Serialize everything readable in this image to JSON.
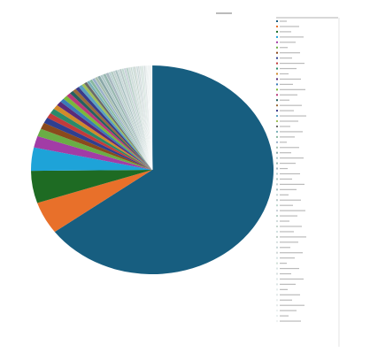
{
  "chart_data": {
    "type": "pie",
    "categories": [
      null,
      null,
      null,
      null,
      null,
      null,
      null,
      null,
      null,
      null,
      null,
      null,
      null,
      null,
      null,
      null,
      null,
      null,
      null,
      null,
      null,
      null,
      null,
      null,
      null,
      null,
      null,
      null,
      null,
      null,
      null,
      null,
      null,
      null,
      null,
      null,
      null,
      null,
      null,
      null,
      null,
      null,
      null,
      null,
      null,
      null,
      null,
      null,
      null,
      null,
      null,
      null,
      null,
      null,
      null,
      null,
      null,
      null
    ],
    "values": [
      65,
      5,
      5,
      3.6,
      1.8,
      1.2,
      1,
      0.9,
      0.8,
      0.8,
      0.7,
      0.7,
      0.6,
      0.6,
      0.6,
      0.5,
      0.5,
      0.5,
      0.5,
      0.4,
      0.4,
      0.4,
      0.4,
      0.4,
      0.4,
      0.4,
      0.4,
      0.4,
      0.4,
      0.3,
      0.3,
      0.3,
      0.3,
      0.3,
      0.3,
      0.3,
      0.3,
      0.3,
      0.3,
      0.2,
      0.2,
      0.2,
      0.2,
      0.2,
      0.2,
      0.2,
      0.2,
      0.2,
      0.2,
      0.1,
      0.1,
      0.1,
      0.1,
      0.1,
      0.1,
      0.1,
      0.1,
      0.1
    ],
    "colors": [
      "#175e80",
      "#e8702a",
      "#1e6b23",
      "#1ea3d8",
      "#a23ca6",
      "#6aad45",
      "#8a4a1c",
      "#2f3f8f",
      "#c23b3b",
      "#2a8a6a",
      "#d18a2a",
      "#5a2a7a",
      "#3a7ab8",
      "#7ab83a",
      "#b83a7a",
      "#246060",
      "#986b3a",
      "#3a3a8a",
      "#5aa0c0",
      "#a0c05a",
      "#6a6a6a",
      "#7ab0b8",
      "#88b8a0",
      "#9ab0c8",
      "#a8c0b0",
      "#8aa8a8",
      "#b0c8c8",
      "#98b8b0",
      "#a8b8c0",
      "#b8d0d0",
      "#b0c8c0",
      "#c0d0d0",
      "#a8c0c0",
      "#c8d8d8",
      "#b8c8c8",
      "#c0d8d0",
      "#c8d0d8",
      "#b8d0c8",
      "#d0dcdc",
      "#c8d8d0",
      "#d0e0e0",
      "#c0d0c8",
      "#d8e0e0",
      "#c8d8d8",
      "#d0d8d8",
      "#d8e4e4",
      "#d0e0d8",
      "#dce6e6",
      "#d8e0e0",
      "#e0e8e8",
      "#dce4e4",
      "#e4ecec",
      "#e0e8e8",
      "#e8eeee",
      "#e4eaea",
      "#eaf0f0",
      "#e8eeee",
      "#eef2f2"
    ]
  }
}
